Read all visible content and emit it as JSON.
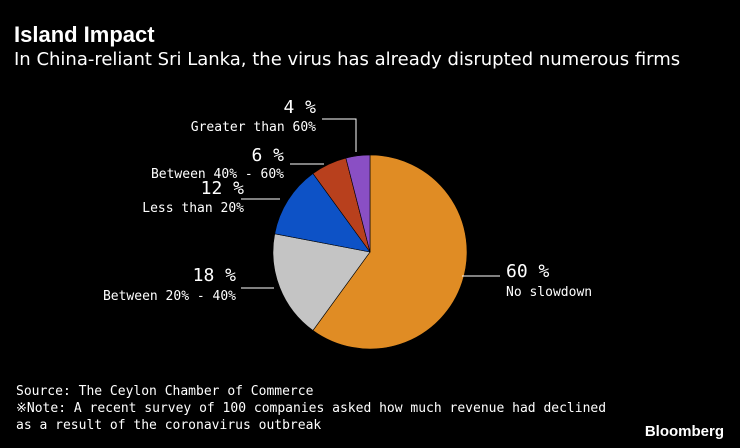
{
  "title": "Island Impact",
  "subtitle": "In China-reliant Sri Lanka, the virus has already disrupted numerous firms",
  "source": "Source: The Ceylon Chamber of Commerce",
  "note_line1": "※Note: A recent survey of 100 companies asked how much revenue had declined",
  "note_line2": "as a result of the coronavirus outbreak",
  "brand": "Bloomberg",
  "chart_data": {
    "type": "pie",
    "title": "Island Impact",
    "subtitle": "In China-reliant Sri Lanka, the virus has already disrupted numerous firms",
    "slices": [
      {
        "label": "No slowdown",
        "value": 60,
        "value_label": "60 %",
        "color": "#e08c24"
      },
      {
        "label": "Between 20% - 40%",
        "value": 18,
        "value_label": "18 %",
        "color": "#c4c4c4"
      },
      {
        "label": "Less than 20%",
        "value": 12,
        "value_label": "12 %",
        "color": "#0d52c6"
      },
      {
        "label": "Between 40% - 60%",
        "value": 6,
        "value_label": "6 %",
        "color": "#b8401d"
      },
      {
        "label": "Greater than 60%",
        "value": 4,
        "value_label": "4 %",
        "color": "#8a4fc4"
      }
    ]
  }
}
